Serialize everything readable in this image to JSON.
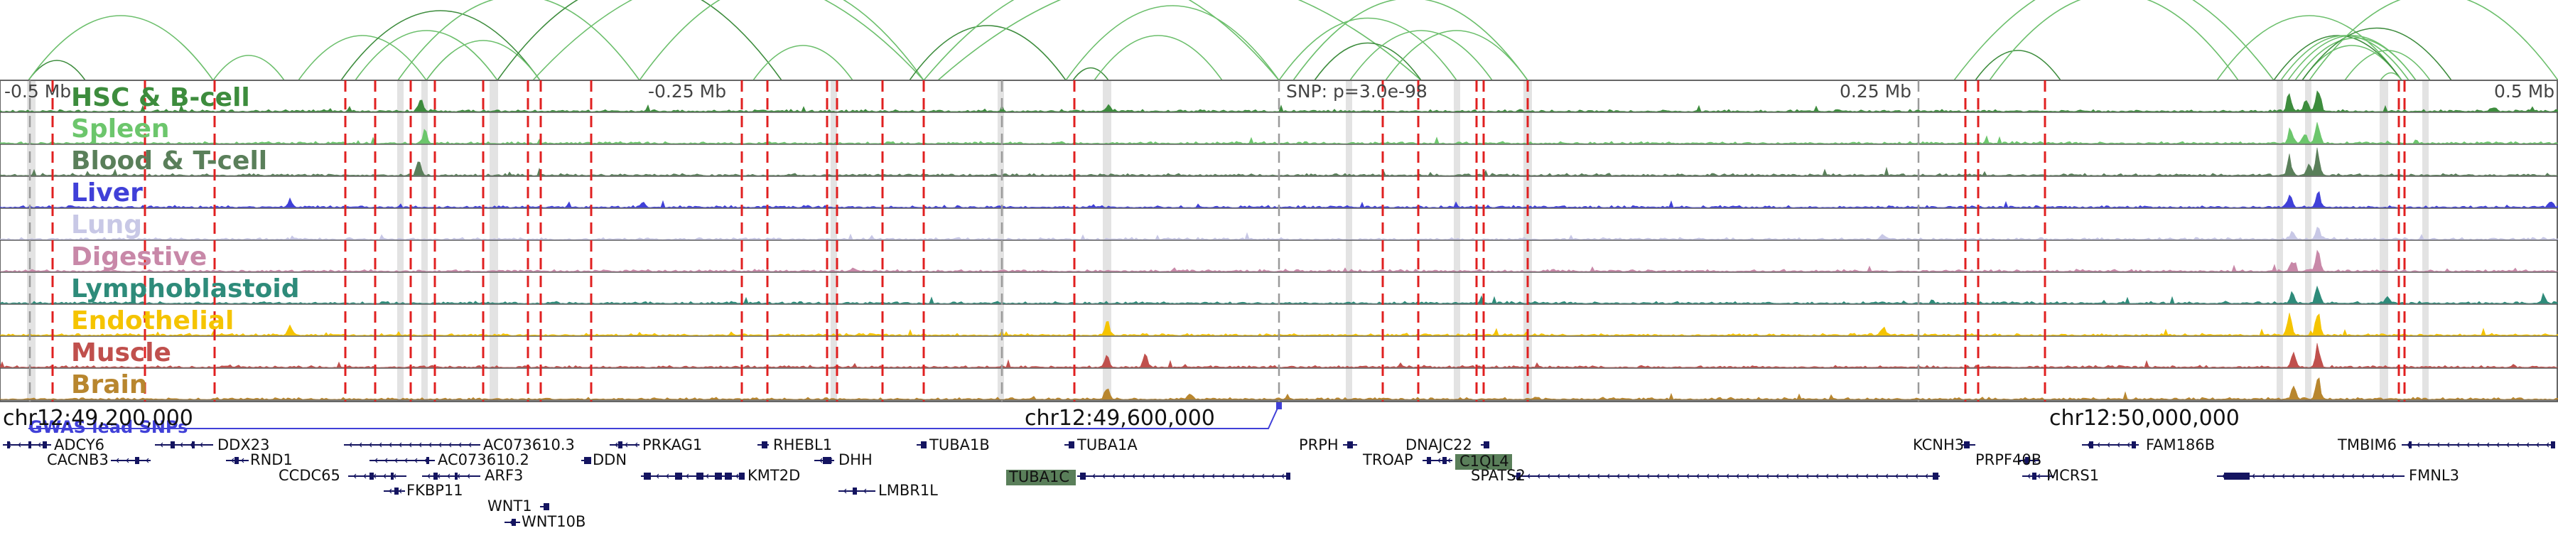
{
  "browser": {
    "scale_labels": [
      "-0.5 Mb",
      "-0.25 Mb",
      "0.25 Mb",
      "0.5 Mb"
    ],
    "snp_label": "SNP: p=3.0e-98",
    "gwas_label": "GWAS lead SNPs",
    "coordinates": [
      "chr12:49,200,000",
      "chr12:49,600,000",
      "chr12:50,000,000"
    ],
    "tracks": [
      {
        "name": "HSC & B-cell",
        "color": "#3d8c3d"
      },
      {
        "name": "Spleen",
        "color": "#6cc66c"
      },
      {
        "name": "Blood & T-cell",
        "color": "#5a7f5a"
      },
      {
        "name": "Liver",
        "color": "#4040d8"
      },
      {
        "name": "Lung",
        "color": "#c8c8e6"
      },
      {
        "name": "Digestive",
        "color": "#c888a8"
      },
      {
        "name": "Lymphoblastoid",
        "color": "#2e8b7a"
      },
      {
        "name": "Endothelial",
        "color": "#f5c400"
      },
      {
        "name": "Muscle",
        "color": "#c0504d"
      },
      {
        "name": "Brain",
        "color": "#b8862e"
      }
    ],
    "genes": [
      {
        "name": "ADCY6"
      },
      {
        "name": "CACNB3"
      },
      {
        "name": "DDX23"
      },
      {
        "name": "RND1"
      },
      {
        "name": "CCDC65"
      },
      {
        "name": "FKBP11"
      },
      {
        "name": "AC073610.3"
      },
      {
        "name": "AC073610.2"
      },
      {
        "name": "ARF3"
      },
      {
        "name": "WNT1"
      },
      {
        "name": "WNT10B"
      },
      {
        "name": "PRKAG1"
      },
      {
        "name": "DDN"
      },
      {
        "name": "KMT2D"
      },
      {
        "name": "RHEBL1"
      },
      {
        "name": "DHH"
      },
      {
        "name": "LMBR1L"
      },
      {
        "name": "TUBA1B"
      },
      {
        "name": "TUBA1A"
      },
      {
        "name": "TUBA1C"
      },
      {
        "name": "PRPH"
      },
      {
        "name": "TROAP"
      },
      {
        "name": "DNAJC22"
      },
      {
        "name": "C1QL4"
      },
      {
        "name": "SPATS2"
      },
      {
        "name": "KCNH3"
      },
      {
        "name": "PRPF40B"
      },
      {
        "name": "MCRS1"
      },
      {
        "name": "FAM186B"
      },
      {
        "name": "TMBIM6"
      },
      {
        "name": "FMNL3"
      }
    ]
  }
}
